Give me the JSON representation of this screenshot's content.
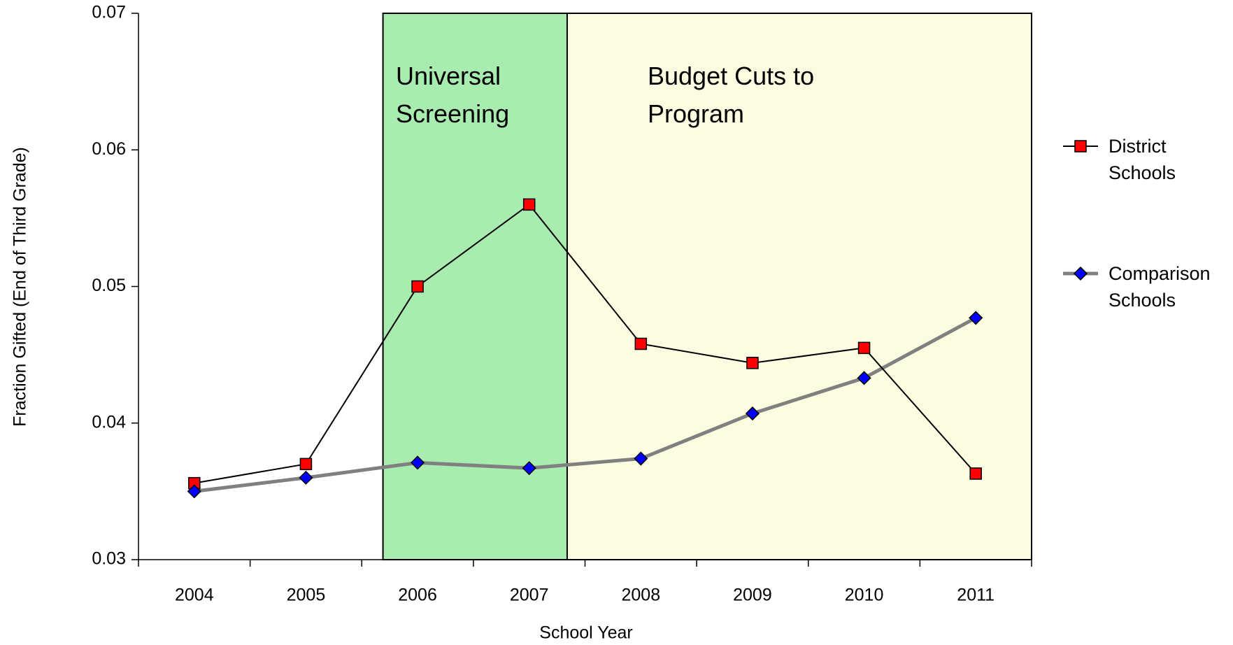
{
  "chart_data": {
    "type": "line",
    "x_label": "School Year",
    "y_label": "Fraction Gifted (End of Third Grade)",
    "categories": [
      "2004",
      "2005",
      "2006",
      "2007",
      "2008",
      "2009",
      "2010",
      "2011"
    ],
    "series": [
      {
        "name": "District Schools",
        "color": "#ff0000",
        "line_color": "#000000",
        "marker": "square",
        "values": [
          0.0356,
          0.037,
          0.05,
          0.056,
          0.0458,
          0.0444,
          0.0455,
          0.0363
        ]
      },
      {
        "name": "Comparison Schools",
        "color": "#0000ff",
        "line_color": "#808080",
        "marker": "diamond",
        "values": [
          0.035,
          0.036,
          0.0371,
          0.0367,
          0.0374,
          0.0407,
          0.0433,
          0.0477
        ]
      }
    ],
    "annotations": [
      "Universal Screening",
      "Budget Cuts to Program"
    ],
    "ylim": [
      0.03,
      0.07
    ],
    "yticks": [
      0.03,
      0.04,
      0.05,
      0.06,
      0.07
    ],
    "legend": "right"
  }
}
